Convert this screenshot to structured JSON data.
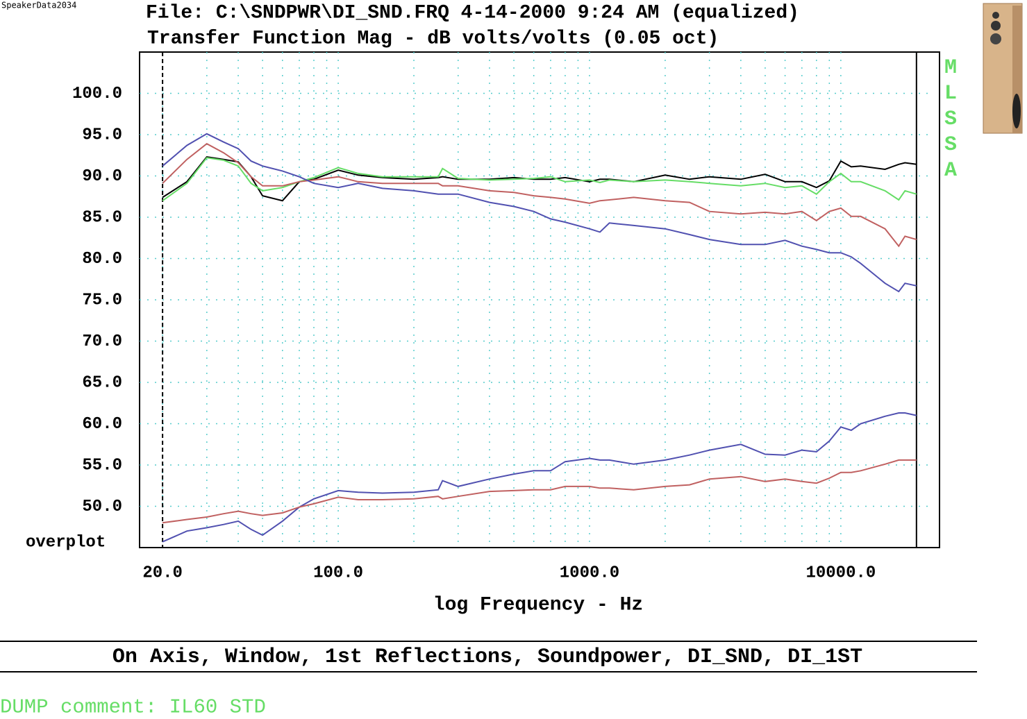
{
  "watermark": "SpeakerData2034",
  "chart_data": {
    "type": "line",
    "title": "File: C:\\SNDPWR\\DI_SND.FRQ 4-14-2000 9:24 AM (equalized)",
    "subtitle": "Transfer Function Mag - dB volts/volts (0.05 oct)",
    "x_label": "log Frequency - Hz",
    "corner_label": "overplot",
    "side_label": "MLSSA",
    "caption": "On Axis, Window, 1st Reflections, Soundpower, DI_SND, DI_1ST",
    "footer": "DUMP comment: IL60 STD",
    "xscale": "log",
    "grid": true,
    "xlim": [
      16.2,
      24700
    ],
    "ylim": [
      45,
      105
    ],
    "xticks": [
      {
        "value": 20,
        "label": "20.0"
      },
      {
        "value": 100,
        "label": "100.0"
      },
      {
        "value": 1000,
        "label": "1000.0"
      },
      {
        "value": 10000,
        "label": "10000.0"
      }
    ],
    "xgrid": [
      30,
      40,
      50,
      60,
      70,
      80,
      90,
      200,
      300,
      400,
      500,
      600,
      700,
      800,
      900,
      2000,
      3000,
      4000,
      5000,
      6000,
      7000,
      8000,
      9000,
      20000
    ],
    "x_markers": [
      20,
      20000
    ],
    "yticks": [
      {
        "value": 100,
        "label": "100.0"
      },
      {
        "value": 95,
        "label": "95.0"
      },
      {
        "value": 90,
        "label": "90.0"
      },
      {
        "value": 85,
        "label": "85.0"
      },
      {
        "value": 80,
        "label": "80.0"
      },
      {
        "value": 75,
        "label": "75.0"
      },
      {
        "value": 70,
        "label": "70.0"
      },
      {
        "value": 65,
        "label": "65.0"
      },
      {
        "value": 60,
        "label": "60.0"
      },
      {
        "value": 55,
        "label": "55.0"
      },
      {
        "value": 50,
        "label": "50.0"
      }
    ],
    "x": [
      20,
      25,
      30,
      35,
      40,
      45,
      50,
      60,
      70,
      80,
      100,
      120,
      150,
      200,
      250,
      260,
      300,
      400,
      500,
      600,
      700,
      800,
      1000,
      1100,
      1200,
      1500,
      2000,
      2500,
      3000,
      4000,
      5000,
      6000,
      7000,
      8000,
      9000,
      10000,
      11000,
      12000,
      15000,
      17000,
      18000,
      20000
    ],
    "series": [
      {
        "color": "#000000",
        "values": [
          87.4,
          89.3,
          92.3,
          92.0,
          91.7,
          89.9,
          87.6,
          87.0,
          89.3,
          89.6,
          90.7,
          90.1,
          89.8,
          89.6,
          89.8,
          89.9,
          89.6,
          89.6,
          89.8,
          89.6,
          89.6,
          89.8,
          89.3,
          89.6,
          89.6,
          89.3,
          90.1,
          89.6,
          89.9,
          89.6,
          90.2,
          89.3,
          89.3,
          88.6,
          89.4,
          91.8,
          91.1,
          91.2,
          90.8,
          91.4,
          91.6,
          91.4
        ]
      },
      {
        "color": "#66dd66",
        "values": [
          87.0,
          89.1,
          92.2,
          91.9,
          91.2,
          89.1,
          88.2,
          88.6,
          89.3,
          89.8,
          91.0,
          90.3,
          89.9,
          89.9,
          89.9,
          90.9,
          89.7,
          89.5,
          89.6,
          89.7,
          89.9,
          89.3,
          89.5,
          89.2,
          89.5,
          89.3,
          89.5,
          89.3,
          89.1,
          88.8,
          89.1,
          88.6,
          88.8,
          87.8,
          89.3,
          90.3,
          89.3,
          89.3,
          88.2,
          87.1,
          88.2,
          87.8
        ]
      },
      {
        "color": "#c06060",
        "values": [
          89.1,
          92.0,
          93.9,
          92.8,
          91.6,
          89.9,
          88.8,
          88.8,
          89.3,
          89.5,
          89.9,
          89.3,
          89.1,
          89.1,
          89.1,
          88.8,
          88.8,
          88.2,
          88.0,
          87.6,
          87.4,
          87.2,
          86.7,
          87.0,
          87.1,
          87.4,
          87.0,
          86.8,
          85.7,
          85.4,
          85.6,
          85.4,
          85.7,
          84.6,
          85.7,
          86.1,
          85.1,
          85.1,
          83.6,
          81.5,
          82.7,
          82.3
        ]
      },
      {
        "color": "#5050b0",
        "values": [
          91.2,
          93.7,
          95.1,
          94.1,
          93.3,
          91.8,
          91.2,
          90.6,
          89.9,
          89.1,
          88.6,
          89.1,
          88.5,
          88.2,
          87.8,
          87.8,
          87.8,
          86.8,
          86.3,
          85.7,
          84.8,
          84.4,
          83.6,
          83.2,
          84.3,
          84.0,
          83.6,
          82.9,
          82.3,
          81.7,
          81.7,
          82.2,
          81.5,
          81.1,
          80.7,
          80.7,
          80.2,
          79.4,
          77.0,
          76.0,
          77.0,
          76.7
        ]
      },
      {
        "color": "#5050b0",
        "values": [
          45.7,
          47.0,
          47.4,
          47.8,
          48.2,
          47.2,
          46.5,
          48.2,
          49.9,
          50.9,
          51.9,
          51.7,
          51.6,
          51.7,
          52.0,
          53.1,
          52.4,
          53.3,
          53.9,
          54.3,
          54.3,
          55.4,
          55.8,
          55.6,
          55.6,
          55.1,
          55.6,
          56.2,
          56.8,
          57.5,
          56.3,
          56.2,
          56.8,
          56.6,
          57.9,
          59.6,
          59.2,
          60.0,
          60.9,
          61.3,
          61.3,
          61.0
        ]
      },
      {
        "color": "#c06060",
        "values": [
          48.0,
          48.4,
          48.7,
          49.1,
          49.4,
          49.1,
          48.9,
          49.2,
          49.9,
          50.3,
          51.1,
          50.8,
          50.8,
          50.9,
          51.2,
          50.9,
          51.2,
          51.8,
          51.9,
          52.0,
          52.0,
          52.4,
          52.4,
          52.2,
          52.2,
          52.0,
          52.4,
          52.6,
          53.3,
          53.6,
          53.0,
          53.3,
          53.0,
          52.8,
          53.4,
          54.1,
          54.1,
          54.3,
          55.1,
          55.6,
          55.6,
          55.6
        ]
      }
    ]
  }
}
